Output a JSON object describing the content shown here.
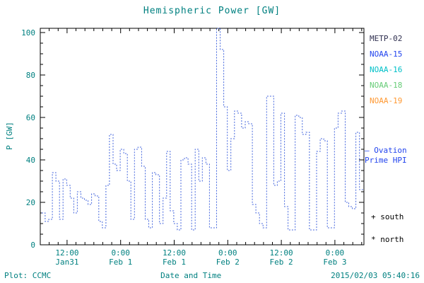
{
  "title": "Hemispheric Power [GW]",
  "theme": {
    "teal": "#008080",
    "axis": "#000000",
    "background": "#ffffff"
  },
  "legend": {
    "items": [
      {
        "label": "METP-02",
        "color": "#303050"
      },
      {
        "label": "NOAA-15",
        "color": "#2244ee"
      },
      {
        "label": "NOAA-16",
        "color": "#00c0c8"
      },
      {
        "label": "NOAA-18",
        "color": "#66cc77"
      },
      {
        "label": "NOAA-19",
        "color": "#ff9933"
      }
    ]
  },
  "annotations": {
    "ovation_line1": "— Ovation",
    "ovation_line2": "Prime HPI",
    "ovation_color": "#2244ee",
    "south": "+ south",
    "north": "* north"
  },
  "footer": {
    "plot_credit": "Plot: CCMC",
    "timestamp": "2015/02/03 05:40:16"
  },
  "chart_data": {
    "type": "line",
    "title": "Hemispheric Power [GW]",
    "xlabel": "Date and Time",
    "ylabel": "P [GW]",
    "ylim": [
      0,
      102
    ],
    "y_ticks": [
      0,
      20,
      40,
      60,
      80,
      100
    ],
    "x_range": [
      0,
      72.5
    ],
    "x_ticks": [
      {
        "hour": 6,
        "time": "12:00",
        "date": "Jan31"
      },
      {
        "hour": 18,
        "time": "0:00",
        "date": "Feb 1"
      },
      {
        "hour": 30,
        "time": "12:00",
        "date": "Feb 1"
      },
      {
        "hour": 42,
        "time": "0:00",
        "date": "Feb 2"
      },
      {
        "hour": 54,
        "time": "12:00",
        "date": "Feb 2"
      },
      {
        "hour": 66,
        "time": "0:00",
        "date": "Feb 3"
      }
    ],
    "x_minor_step_hours": 2,
    "y_minor_step": 5,
    "series_name": "Ovation Prime HPI",
    "series_color": "#4466dd",
    "line_style": "dashed-step",
    "x_start": 0.3,
    "x_step": 0.8,
    "values": [
      15,
      11,
      12,
      34,
      30,
      12,
      31,
      28,
      22,
      15,
      25,
      22,
      21,
      19,
      24,
      23,
      11,
      8,
      28,
      52,
      38,
      35,
      45,
      43,
      30,
      12,
      45,
      46,
      37,
      12,
      8,
      34,
      33,
      10,
      22,
      44,
      16,
      10,
      7,
      40,
      41,
      38,
      7,
      45,
      30,
      41,
      38,
      8,
      8,
      104,
      92,
      65,
      35,
      50,
      63,
      62,
      55,
      58,
      57,
      19,
      15,
      10,
      8,
      70,
      70,
      28,
      30,
      62,
      18,
      7,
      7,
      61,
      60,
      52,
      53,
      7,
      7,
      44,
      50,
      49,
      8,
      8,
      55,
      62,
      63,
      20,
      18,
      17,
      53,
      26
    ]
  }
}
